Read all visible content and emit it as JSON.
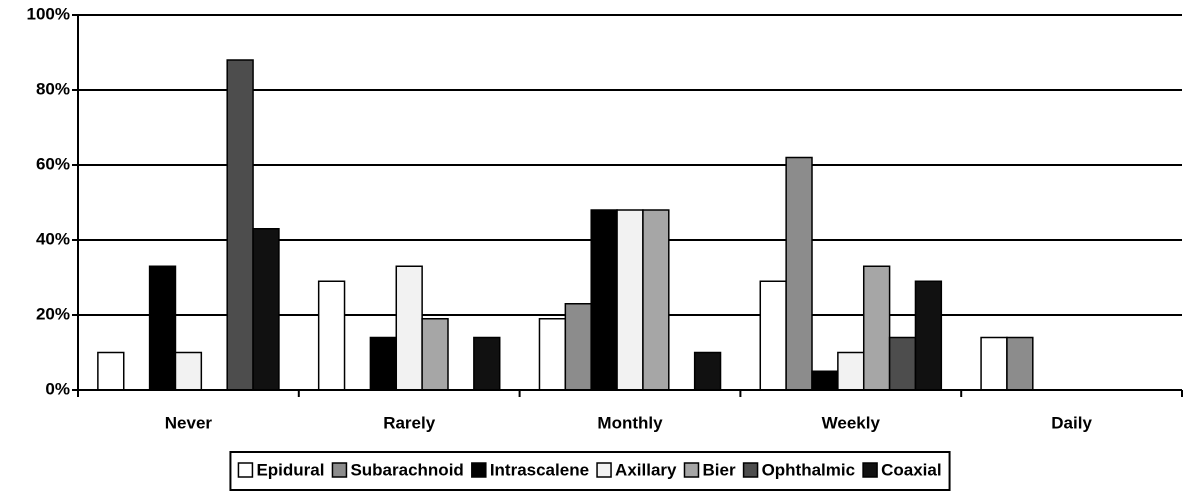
{
  "chart_data": {
    "type": "bar",
    "categories": [
      "Never",
      "Rarely",
      "Monthly",
      "Weekly",
      "Daily"
    ],
    "series": [
      {
        "name": "Epidural",
        "color": "#ffffff",
        "values": [
          10,
          29,
          19,
          29,
          14
        ]
      },
      {
        "name": "Subarachnoid",
        "color": "#8c8c8c",
        "values": [
          0,
          0,
          23,
          62,
          14
        ]
      },
      {
        "name": "Intrascalene",
        "color": "#000000",
        "values": [
          33,
          14,
          48,
          5,
          0
        ]
      },
      {
        "name": "Axillary",
        "color": "#f2f2f2",
        "values": [
          10,
          33,
          48,
          10,
          0
        ]
      },
      {
        "name": "Bier",
        "color": "#a6a6a6",
        "values": [
          0,
          19,
          48,
          33,
          0
        ]
      },
      {
        "name": "Ophthalmic",
        "color": "#4d4d4d",
        "values": [
          88,
          0,
          0,
          14,
          0
        ]
      },
      {
        "name": "Coaxial",
        "color": "#111111",
        "values": [
          43,
          14,
          10,
          29,
          0
        ]
      }
    ],
    "ylim": [
      0,
      100
    ],
    "yticks": [
      {
        "value": 0,
        "label": "0%"
      },
      {
        "value": 20,
        "label": "20%"
      },
      {
        "value": 40,
        "label": "40%"
      },
      {
        "value": 60,
        "label": "60%"
      },
      {
        "value": 80,
        "label": "80%"
      },
      {
        "value": 100,
        "label": "100%"
      }
    ],
    "grid": true,
    "legend": "bottom"
  }
}
